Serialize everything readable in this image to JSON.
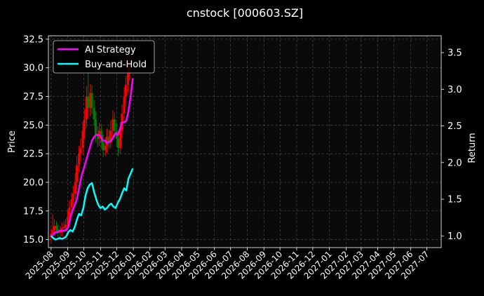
{
  "chart_data": {
    "type": "line",
    "title": "cnstock [000603.SZ]",
    "xlabel": "",
    "ylabel": "Price",
    "y2label": "Return",
    "grid": true,
    "legend": {
      "placement": "top-left",
      "entries": [
        {
          "name": "AI Strategy",
          "color": "#ff00ff"
        },
        {
          "name": "Buy-and-Hold",
          "color": "#00ffff"
        }
      ]
    },
    "x_ticks": [
      "2025-08",
      "2025-09",
      "2025-10",
      "2025-11",
      "2025-12",
      "2026-01",
      "2026-02",
      "2026-03",
      "2026-04",
      "2026-05",
      "2026-06",
      "2026-07",
      "2026-08",
      "2026-09",
      "2026-10",
      "2026-11",
      "2026-12",
      "2027-01",
      "2027-02",
      "2027-03",
      "2027-04",
      "2027-05",
      "2027-06",
      "2027-07"
    ],
    "x_range": [
      "2025-07-27",
      "2027-07-28"
    ],
    "y_left": {
      "range": [
        14.3,
        32.8
      ],
      "ticks": [
        "15.0",
        "17.5",
        "20.0",
        "22.5",
        "25.0",
        "27.5",
        "30.0",
        "32.5"
      ]
    },
    "y_right": {
      "range": [
        0.84,
        3.73
      ],
      "ticks": [
        "1.0",
        "1.5",
        "2.0",
        "2.5",
        "3.0",
        "3.5"
      ]
    },
    "candlestick": {
      "name": "Price",
      "up_color": "#ff0000",
      "down_color": "#008000",
      "x": [
        "2025-08-01",
        "2025-08-04",
        "2025-08-07",
        "2025-08-11",
        "2025-08-14",
        "2025-08-18",
        "2025-08-21",
        "2025-08-25",
        "2025-08-28",
        "2025-09-01",
        "2025-09-04",
        "2025-09-08",
        "2025-09-11",
        "2025-09-15",
        "2025-09-18",
        "2025-09-22",
        "2025-09-25",
        "2025-09-29",
        "2025-10-02",
        "2025-10-06",
        "2025-10-09",
        "2025-10-13",
        "2025-10-16",
        "2025-10-20",
        "2025-10-23",
        "2025-10-27",
        "2025-10-30",
        "2025-11-03",
        "2025-11-06",
        "2025-11-10",
        "2025-11-13",
        "2025-11-17",
        "2025-11-20",
        "2025-11-24",
        "2025-11-27",
        "2025-12-01",
        "2025-12-04",
        "2025-12-08",
        "2025-12-11",
        "2025-12-15",
        "2025-12-18",
        "2025-12-22",
        "2025-12-25"
      ],
      "open": [
        15.2,
        15.5,
        15.8,
        16.2,
        15.9,
        15.6,
        15.8,
        16.0,
        16.1,
        16.3,
        17.0,
        17.8,
        18.5,
        19.0,
        20.0,
        21.5,
        22.5,
        23.0,
        24.5,
        25.5,
        27.5,
        26.5,
        27.8,
        26.5,
        25.5,
        24.2,
        23.8,
        24.5,
        23.5,
        22.8,
        23.2,
        24.0,
        23.5,
        24.5,
        25.5,
        24.5,
        23.8,
        23.0,
        24.5,
        26.0,
        27.5,
        28.5,
        29.5
      ],
      "close": [
        15.5,
        15.8,
        16.2,
        15.9,
        15.6,
        15.8,
        16.0,
        16.1,
        16.3,
        17.0,
        17.8,
        18.5,
        19.0,
        20.0,
        21.5,
        22.5,
        23.0,
        24.5,
        25.5,
        27.5,
        26.5,
        27.8,
        26.5,
        25.5,
        24.2,
        23.8,
        24.5,
        23.5,
        22.8,
        23.2,
        24.0,
        23.5,
        24.5,
        25.5,
        24.5,
        23.8,
        23.0,
        24.5,
        26.0,
        27.5,
        28.5,
        29.5,
        30.3
      ],
      "high": [
        16.0,
        17.2,
        16.8,
        16.6,
        16.3,
        16.2,
        16.5,
        16.6,
        16.8,
        17.6,
        18.4,
        19.1,
        19.7,
        20.8,
        22.3,
        23.2,
        23.8,
        25.3,
        26.4,
        28.4,
        30.0,
        28.6,
        28.5,
        27.2,
        26.2,
        24.9,
        25.2,
        25.1,
        24.2,
        23.9,
        24.7,
        24.6,
        25.4,
        26.3,
        26.1,
        25.2,
        24.5,
        25.3,
        26.8,
        28.3,
        29.3,
        30.3,
        31.0
      ],
      "low": [
        14.8,
        15.1,
        15.3,
        15.5,
        15.2,
        15.1,
        15.3,
        15.6,
        15.7,
        15.9,
        16.6,
        17.3,
        18.0,
        18.5,
        19.4,
        20.9,
        21.8,
        22.4,
        23.8,
        24.8,
        25.7,
        25.8,
        26.0,
        24.9,
        23.5,
        23.1,
        23.2,
        22.9,
        22.2,
        22.3,
        22.6,
        22.9,
        23.0,
        23.9,
        23.8,
        23.1,
        22.3,
        22.5,
        23.9,
        25.4,
        26.8,
        27.8,
        28.9
      ]
    },
    "series": [
      {
        "name": "AI Strategy",
        "axis": "right",
        "color": "#ff00ff",
        "x": [
          "2025-08-01",
          "2025-08-05",
          "2025-08-09",
          "2025-08-13",
          "2025-08-17",
          "2025-08-21",
          "2025-08-25",
          "2025-08-29",
          "2025-09-02",
          "2025-09-06",
          "2025-09-10",
          "2025-09-14",
          "2025-09-18",
          "2025-09-22",
          "2025-09-26",
          "2025-09-30",
          "2025-10-04",
          "2025-10-08",
          "2025-10-12",
          "2025-10-16",
          "2025-10-20",
          "2025-10-24",
          "2025-10-28",
          "2025-11-01",
          "2025-11-05",
          "2025-11-09",
          "2025-11-13",
          "2025-11-17",
          "2025-11-21",
          "2025-11-25",
          "2025-11-29",
          "2025-12-03",
          "2025-12-07",
          "2025-12-11",
          "2025-12-15",
          "2025-12-19",
          "2025-12-23",
          "2025-12-27",
          "2025-12-31"
        ],
        "values": [
          1.0,
          1.02,
          1.05,
          1.05,
          1.07,
          1.07,
          1.07,
          1.08,
          1.12,
          1.25,
          1.35,
          1.42,
          1.5,
          1.65,
          1.8,
          1.9,
          2.0,
          2.1,
          2.2,
          2.3,
          2.35,
          2.38,
          2.38,
          2.36,
          2.3,
          2.3,
          2.27,
          2.28,
          2.3,
          2.35,
          2.4,
          2.38,
          2.45,
          2.55,
          2.55,
          2.57,
          2.7,
          2.9,
          3.15
        ]
      },
      {
        "name": "Buy-and-Hold",
        "axis": "right",
        "color": "#00ffff",
        "x": [
          "2025-08-01",
          "2025-08-05",
          "2025-08-09",
          "2025-08-13",
          "2025-08-17",
          "2025-08-21",
          "2025-08-25",
          "2025-08-29",
          "2025-09-02",
          "2025-09-06",
          "2025-09-10",
          "2025-09-14",
          "2025-09-18",
          "2025-09-22",
          "2025-09-26",
          "2025-09-30",
          "2025-10-04",
          "2025-10-08",
          "2025-10-12",
          "2025-10-16",
          "2025-10-20",
          "2025-10-24",
          "2025-10-28",
          "2025-11-01",
          "2025-11-05",
          "2025-11-09",
          "2025-11-13",
          "2025-11-17",
          "2025-11-21",
          "2025-11-25",
          "2025-11-29",
          "2025-12-03",
          "2025-12-07",
          "2025-12-11",
          "2025-12-15",
          "2025-12-19",
          "2025-12-23",
          "2025-12-27",
          "2025-12-31"
        ],
        "values": [
          1.0,
          0.97,
          0.95,
          0.96,
          0.97,
          0.96,
          0.97,
          0.99,
          1.05,
          1.08,
          1.06,
          1.12,
          1.22,
          1.3,
          1.28,
          1.38,
          1.55,
          1.65,
          1.7,
          1.72,
          1.6,
          1.5,
          1.42,
          1.38,
          1.4,
          1.36,
          1.38,
          1.42,
          1.44,
          1.4,
          1.38,
          1.45,
          1.5,
          1.58,
          1.65,
          1.62,
          1.78,
          1.85,
          1.92
        ]
      }
    ]
  }
}
